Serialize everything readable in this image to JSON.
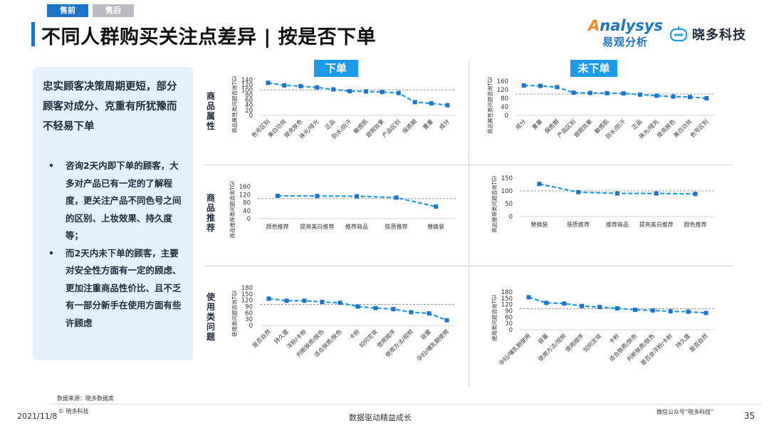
{
  "header": {
    "tabs": [
      {
        "label": "售前",
        "active": true
      },
      {
        "label": "售后",
        "active": false
      }
    ],
    "title": "不同人群购买关注点差异 | 按是否下单",
    "logo_analysys_en": "nalysys",
    "logo_analysys_en_initial": "A",
    "logo_analysys_cn": "易观分析",
    "logo_xiaoduo": "晓多科技"
  },
  "sidebar": {
    "headline": "忠实顾客决策周期更短，部分顾客对成分、克重有所犹豫而不轻易下单",
    "bullets": [
      "咨询2天内即下单的顾客，大多对产品已有一定的了解程度，更关注产品不同色号之间的区别、上妆效果、持久度等；",
      "而2天内未下单的顾客，主要对安全性方面有一定的顾虑、更加注重商品性价比、且不乏有一部分新手在使用方面有些许顾虑"
    ]
  },
  "panels": {
    "left": "下单",
    "right": "未下单"
  },
  "row_labels": [
    "商品属性",
    "商品推荐",
    "使用类问题"
  ],
  "colors": {
    "series": "#1e9be8",
    "marker": "#1b74c8",
    "reference": "#9a9a9a",
    "accent": "#1b74c8",
    "title_bg": "#1e9be8"
  },
  "chart_data": [
    {
      "id": "attr-ordered",
      "type": "line",
      "panel": "下单",
      "row": "商品属性",
      "ylabel": "商品属性类问题咨询TGI",
      "ylim": [
        0,
        140
      ],
      "yticks": [
        0,
        20,
        40,
        60,
        80,
        100,
        120,
        140
      ],
      "reference_line": 100,
      "rotate_labels": true,
      "categories": [
        "色号区别",
        "美白功效",
        "提亮肤色",
        "珠光/哑光",
        "正品",
        "防水/防汗",
        "敏感肌",
        "遮瑕效果",
        "产品区别",
        "保质期",
        "重量",
        "成分"
      ],
      "values": [
        128,
        118,
        115,
        110,
        102,
        95,
        94,
        92,
        88,
        52,
        47,
        40
      ]
    },
    {
      "id": "attr-not-ordered",
      "type": "line",
      "panel": "未下单",
      "row": "商品属性",
      "ylabel": "商品属性类问题咨询TGI",
      "ylim": [
        0,
        160
      ],
      "yticks": [
        0,
        40,
        80,
        120,
        160
      ],
      "reference_line": 100,
      "rotate_labels": true,
      "categories": [
        "成分",
        "重量",
        "保质期",
        "产品区别",
        "遮瑕效果",
        "敏感肌",
        "防水/防汗",
        "正品",
        "珠光/哑光",
        "提亮肤色",
        "美白功效",
        "色号区别"
      ],
      "values": [
        140,
        138,
        132,
        106,
        105,
        104,
        103,
        97,
        92,
        88,
        86,
        80
      ]
    },
    {
      "id": "rec-ordered",
      "type": "line",
      "panel": "下单",
      "row": "商品推荐",
      "ylabel": "商品推荐类问题咨询TGI",
      "ylim": [
        0,
        160
      ],
      "yticks": [
        0,
        40,
        80,
        120,
        160
      ],
      "reference_line": 100,
      "rotate_labels": false,
      "categories": [
        "颜色推荐",
        "提亮美白推荐",
        "推荐商品",
        "肤质推荐",
        "替换装"
      ],
      "values": [
        114,
        113,
        112,
        105,
        60
      ]
    },
    {
      "id": "rec-not-ordered",
      "type": "line",
      "panel": "未下单",
      "row": "商品推荐",
      "ylabel": "商品推荐类问题咨询TGI",
      "ylim": [
        0,
        150
      ],
      "yticks": [
        0,
        50,
        100,
        150
      ],
      "reference_line": 100,
      "rotate_labels": false,
      "categories": [
        "替换装",
        "肤质推荐",
        "推荐商品",
        "提亮美白推荐",
        "颜色推荐"
      ],
      "values": [
        127,
        95,
        90,
        90,
        88
      ]
    },
    {
      "id": "use-ordered",
      "type": "line",
      "panel": "下单",
      "row": "使用类问题",
      "ylabel": "使用类问题咨询TGI",
      "ylim": [
        0,
        180
      ],
      "yticks": [
        0,
        30,
        60,
        90,
        120,
        150,
        180
      ],
      "reference_line": 100,
      "rotate_labels": true,
      "categories": [
        "是否自然",
        "持久度",
        "浮粉/卡粉",
        "判断肤质/肤色",
        "适合肤质/肤色",
        "卡粉",
        "如何定妆",
        "使用顺序",
        "使用方法/视频",
        "容量",
        "孕妇/哺乳期使用"
      ],
      "values": [
        128,
        118,
        118,
        112,
        108,
        90,
        83,
        78,
        63,
        58,
        25
      ]
    },
    {
      "id": "use-not-ordered",
      "type": "line",
      "panel": "未下单",
      "row": "使用类问题",
      "ylabel": "使用类问题咨询TGI",
      "ylim": [
        0,
        180
      ],
      "yticks": [
        0,
        30,
        60,
        90,
        120,
        150,
        180
      ],
      "reference_line": 100,
      "rotate_labels": true,
      "categories": [
        "孕妇/哺乳期使用",
        "容量",
        "使用方法/视频",
        "使用顺序",
        "如何定妆",
        "卡粉",
        "适合肤质/肤色",
        "判断肤质/肤色",
        "是否会浮粉/卡粉",
        "持久度",
        "是否自然"
      ],
      "values": [
        155,
        128,
        125,
        113,
        108,
        102,
        95,
        92,
        88,
        86,
        80
      ]
    }
  ],
  "footer": {
    "source": "数据来源：晓多数据库",
    "copyright": "© 晓多科技",
    "date": "2021/11/8",
    "slogan": "数据驱动精益成长",
    "wechat": "微信公众号“晓多科技”",
    "page": "35"
  }
}
